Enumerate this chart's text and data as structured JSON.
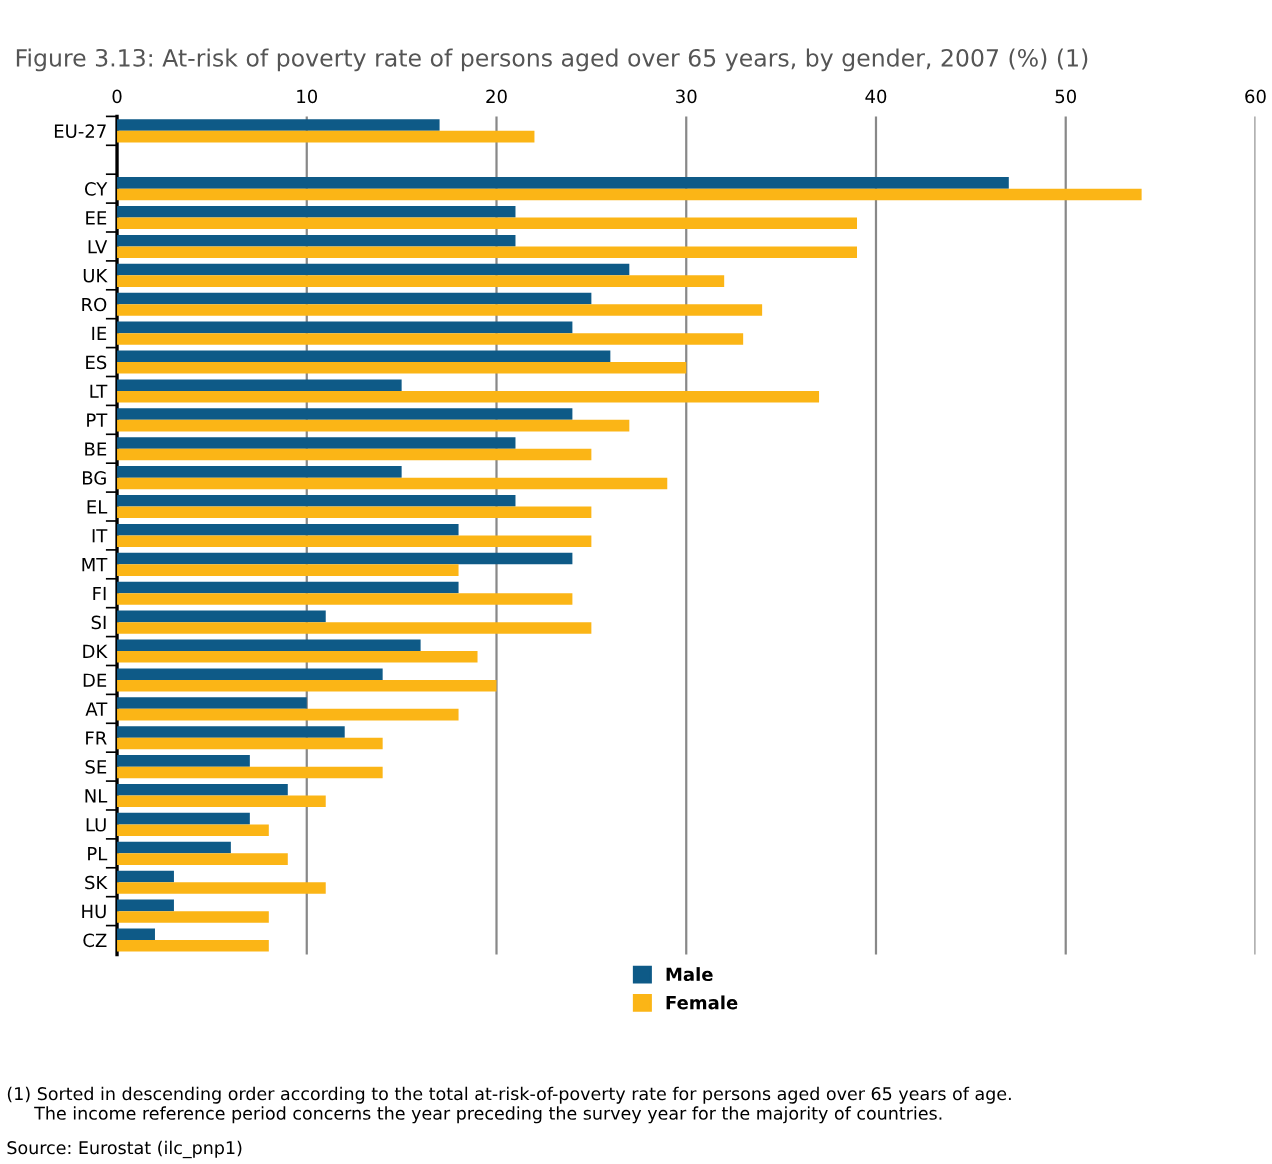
{
  "chart_data": {
    "type": "bar",
    "orientation": "horizontal",
    "title": "Figure 3.13: At-risk of poverty rate of persons aged over 65 years, by gender, 2007 (%) (1)",
    "categories": [
      "EU-27",
      null,
      "CY",
      "EE",
      "LV",
      "UK",
      "RO",
      "IE",
      "ES",
      "LT",
      "PT",
      "BE",
      "BG",
      "EL",
      "IT",
      "MT",
      "FI",
      "SI",
      "DK",
      "DE",
      "AT",
      "FR",
      "SE",
      "NL",
      "LU",
      "PL",
      "SK",
      "HU",
      "CZ"
    ],
    "series": [
      {
        "name": "Male",
        "color": "#0e5a87",
        "values": [
          17,
          null,
          47,
          21,
          21,
          27,
          25,
          24,
          26,
          15,
          24,
          21,
          15,
          21,
          18,
          24,
          18,
          11,
          16,
          14,
          10,
          12,
          7,
          9,
          7,
          6,
          3,
          3,
          2
        ]
      },
      {
        "name": "Female",
        "color": "#fbb516",
        "values": [
          22,
          null,
          54,
          39,
          39,
          32,
          34,
          33,
          30,
          37,
          27,
          25,
          29,
          25,
          25,
          18,
          24,
          25,
          19,
          20,
          18,
          14,
          14,
          11,
          8,
          9,
          11,
          8,
          8
        ]
      }
    ],
    "xlim": [
      0,
      60
    ],
    "xticks": [
      0,
      10,
      20,
      30,
      40,
      50,
      60
    ],
    "grid": "x",
    "legend": "bottom",
    "annotations": [
      "(1) Sorted in descending order according to the total at-risk-of-poverty rate for persons aged over 65 years of age.\n     The income reference period concerns the year preceding the survey year for the majority of countries.",
      "Source: Eurostat (ilc_pnp1)"
    ]
  }
}
